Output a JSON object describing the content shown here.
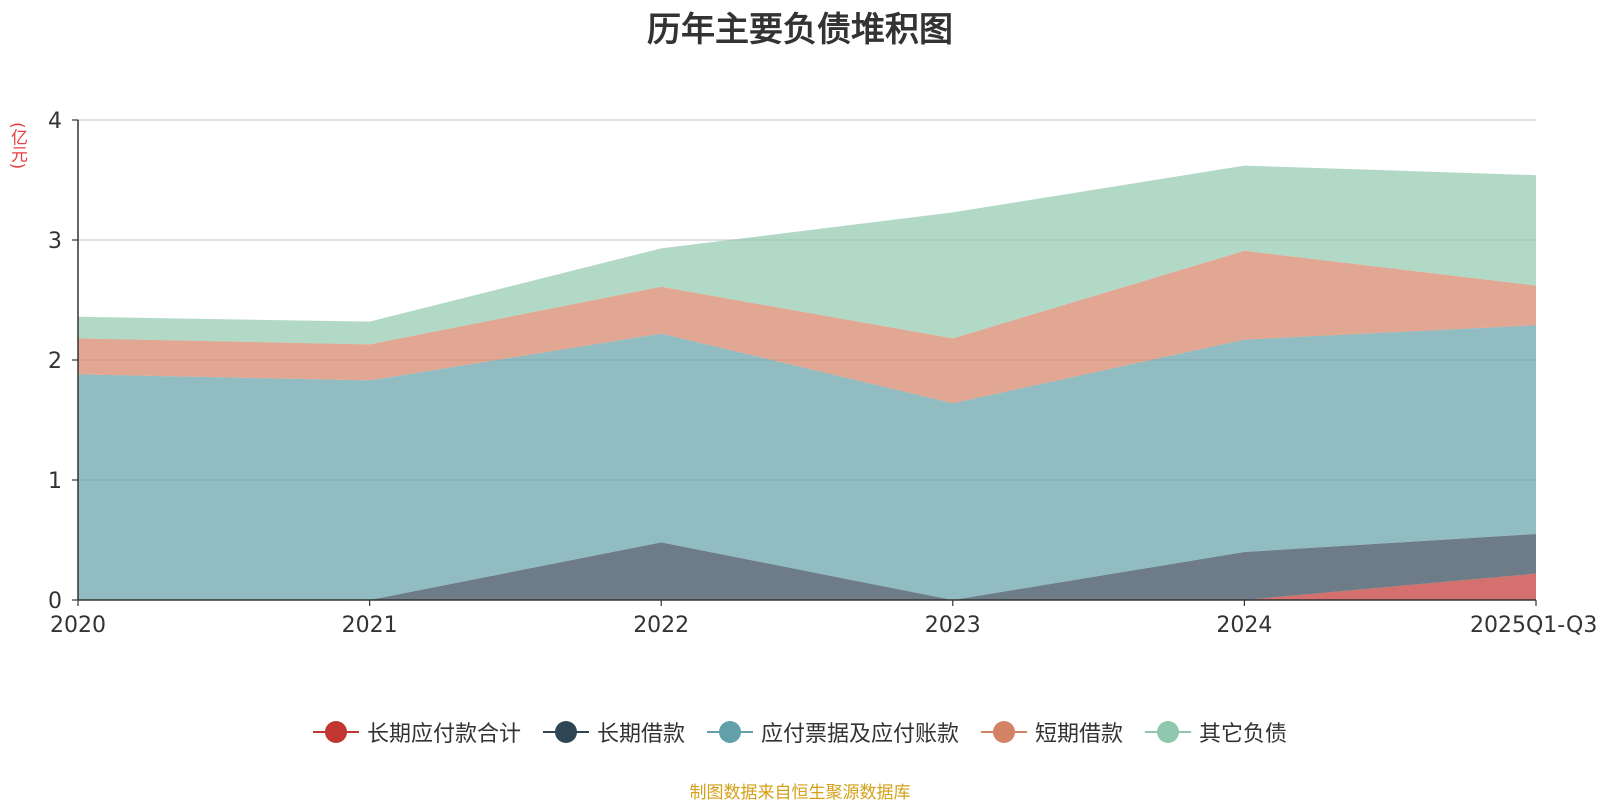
{
  "chart_data": {
    "type": "area",
    "stacked": true,
    "title": "历年主要负债堆积图",
    "ylabel": "(亿元)",
    "ylim": [
      0,
      4
    ],
    "yticks": [
      0,
      1,
      2,
      3,
      4
    ],
    "grid": true,
    "legend_position": "bottom",
    "categories": [
      "2020",
      "2021",
      "2022",
      "2023",
      "2024",
      "2025Q1-Q3"
    ],
    "series": [
      {
        "name": "长期应付款合计",
        "color": "#c23531",
        "values": [
          0,
          0,
          0,
          0,
          0,
          0.22
        ]
      },
      {
        "name": "长期借款",
        "color": "#2f4554",
        "values": [
          0,
          0,
          0.48,
          0,
          0.4,
          0.33
        ]
      },
      {
        "name": "应付票据及应付账款",
        "color": "#61a0a8",
        "values": [
          1.88,
          1.83,
          1.74,
          1.64,
          1.77,
          1.74
        ]
      },
      {
        "name": "短期借款",
        "color": "#d48265",
        "values": [
          0.3,
          0.3,
          0.39,
          0.54,
          0.74,
          0.33
        ]
      },
      {
        "name": "其它负债",
        "color": "#91c7ae",
        "values": [
          0.18,
          0.19,
          0.32,
          1.05,
          0.71,
          0.92
        ]
      }
    ],
    "source_note": "制图数据来自恒生聚源数据库"
  }
}
